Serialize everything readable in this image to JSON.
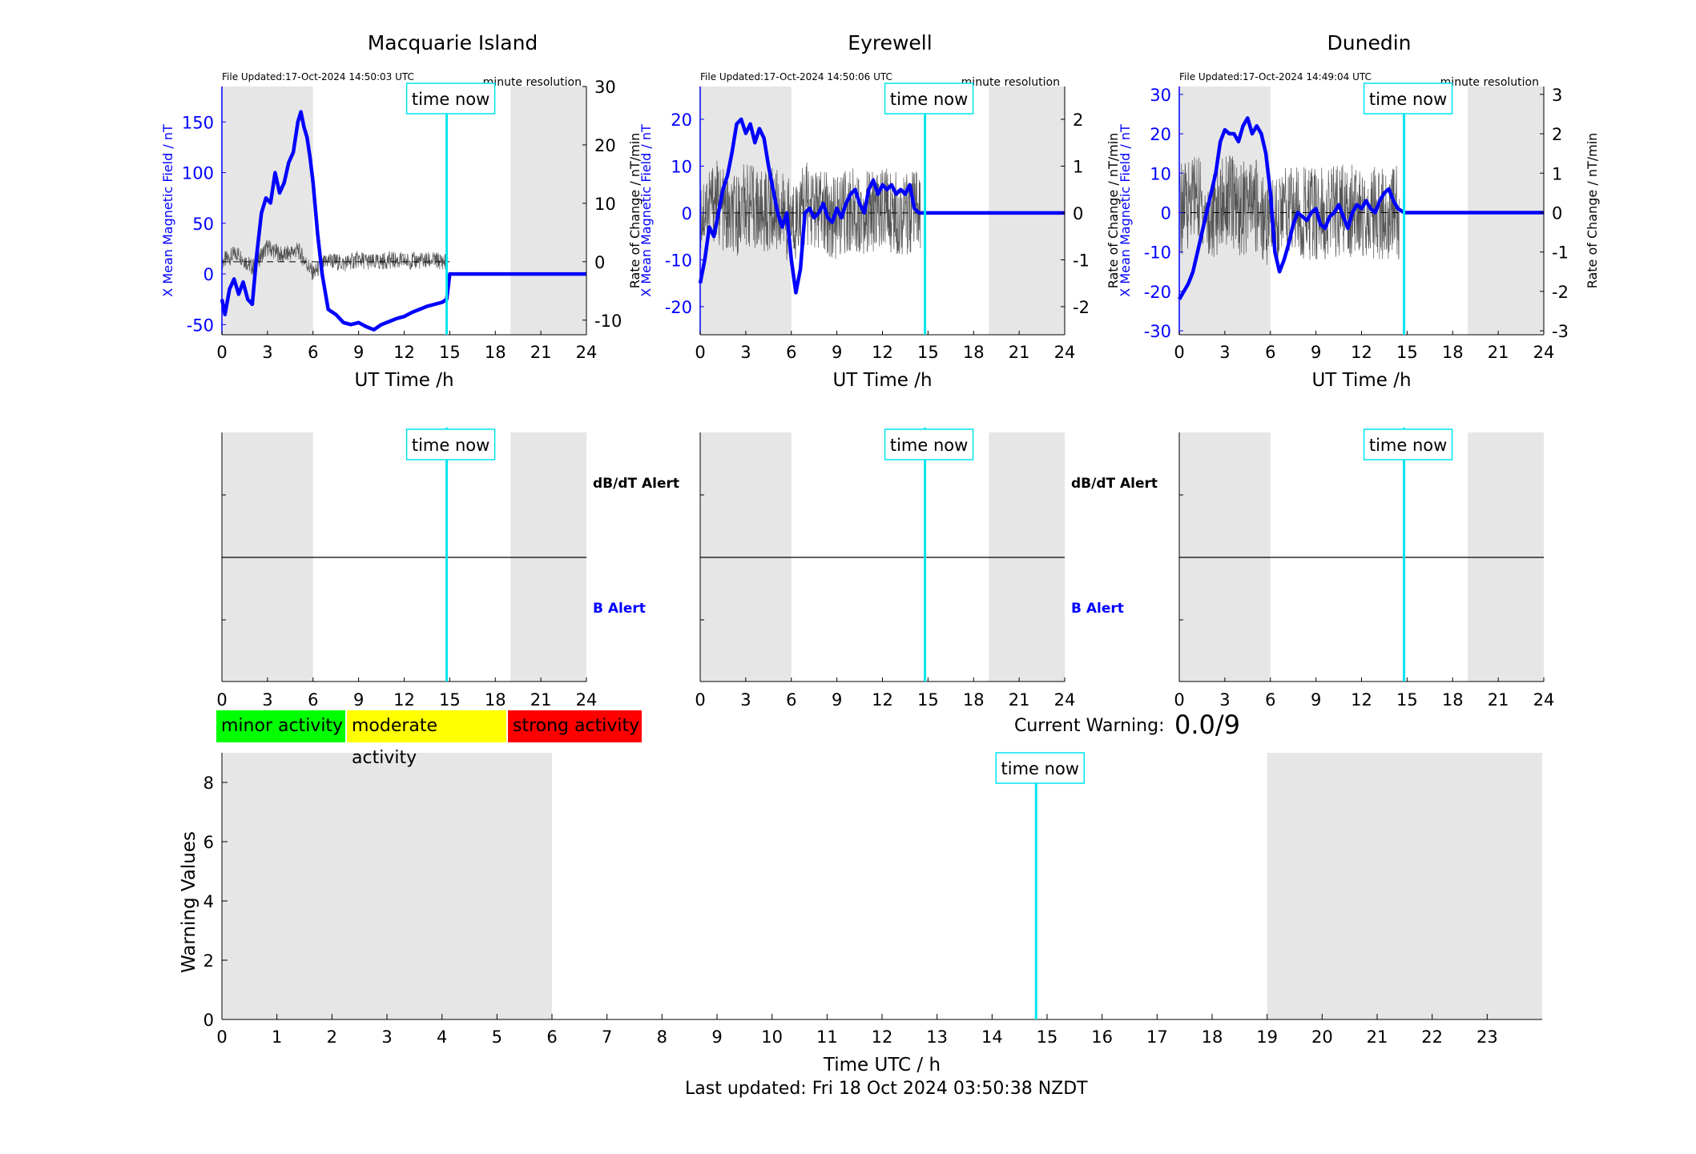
{
  "colors": {
    "field_line": "#0000ff",
    "rate_line": "#555555",
    "time_now": "#00e5ee",
    "night_shade": "#e6e6e6",
    "minor": "#00ff00",
    "moderate": "#ffff00",
    "strong": "#ff0000",
    "b_alert_text": "#0000ff"
  },
  "labels": {
    "time_now": "time now",
    "x_axis_top": "UT Time /h",
    "y_left_top": "X Mean Magnetic Field / nT",
    "y_right_top": "Rate of Change / nT/min",
    "resolution": "minute resolution",
    "dbdt_alert": "dB/dT Alert",
    "b_alert": "B Alert",
    "current_warning_label": "Current Warning:",
    "current_warning_value": "0.0/9",
    "bottom_xlabel": "Time UTC / h",
    "bottom_ylabel": "Warning Values",
    "last_updated": "Last updated: Fri 18 Oct 2024 03:50:38 NZDT"
  },
  "legend": [
    {
      "label": "minor activity",
      "color": "#00ff00"
    },
    {
      "label": "moderate activity",
      "color": "#ffff00"
    },
    {
      "label": "strong activity",
      "color": "#ff0000"
    }
  ],
  "chart_data": [
    {
      "type": "line",
      "title": "Macquarie Island",
      "file_updated": "File Updated:17-Oct-2024 14:50:03 UTC",
      "xlabel": "UT Time /h",
      "ylabel": "X Mean Magnetic Field / nT",
      "y2label": "Rate of Change / nT/min",
      "xlim": [
        0,
        24
      ],
      "xticks": [
        0,
        3,
        6,
        9,
        12,
        15,
        18,
        21,
        24
      ],
      "ylim": [
        -60,
        185
      ],
      "yticks": [
        -50,
        0,
        50,
        100,
        150
      ],
      "y2lim": [
        -12.5,
        30
      ],
      "y2ticks": [
        -10,
        0,
        10,
        20,
        30
      ],
      "night_shading": [
        [
          0,
          6
        ],
        [
          19,
          24
        ]
      ],
      "time_now": 14.8,
      "series": [
        {
          "axis": "left",
          "style": "field",
          "x": [
            0,
            0.2,
            0.5,
            0.8,
            1.1,
            1.4,
            1.7,
            2.0,
            2.3,
            2.6,
            2.9,
            3.2,
            3.5,
            3.8,
            4.1,
            4.4,
            4.7,
            5.0,
            5.2,
            5.4,
            5.6,
            5.8,
            6.0,
            6.3,
            6.6,
            7.0,
            7.5,
            8.0,
            8.5,
            9.0,
            9.5,
            10.0,
            10.5,
            11.0,
            11.5,
            12.0,
            12.5,
            13.0,
            13.5,
            14.0,
            14.5,
            14.8,
            15,
            18,
            21,
            24
          ],
          "y": [
            -25,
            -40,
            -15,
            -5,
            -20,
            -8,
            -25,
            -30,
            20,
            60,
            75,
            70,
            100,
            80,
            90,
            110,
            120,
            150,
            160,
            145,
            135,
            115,
            90,
            40,
            0,
            -35,
            -40,
            -48,
            -50,
            -48,
            -52,
            -55,
            -50,
            -47,
            -44,
            -42,
            -38,
            -35,
            -32,
            -30,
            -28,
            -25,
            0,
            0,
            0,
            0
          ]
        },
        {
          "axis": "right",
          "style": "rate",
          "noise": 1.5,
          "x": [
            0,
            1,
            2,
            3,
            4,
            5,
            6,
            7,
            8,
            9,
            10,
            11,
            12,
            13,
            14,
            14.8
          ],
          "y": [
            0,
            1.5,
            -1,
            2.5,
            1,
            2,
            -2,
            0.3,
            -0.3,
            0.4,
            -0.2,
            0.3,
            0.1,
            0.2,
            0.2,
            0
          ]
        },
        {
          "axis": "right",
          "style": "zero",
          "x": [
            0,
            15
          ],
          "y": [
            0,
            0
          ]
        }
      ]
    },
    {
      "type": "line",
      "title": "Eyrewell",
      "file_updated": "File Updated:17-Oct-2024 14:50:06 UTC",
      "xlabel": "UT Time /h",
      "ylabel": "X Mean Magnetic Field / nT",
      "y2label": "Rate of Change / nT/min",
      "xlim": [
        0,
        24
      ],
      "xticks": [
        0,
        3,
        6,
        9,
        12,
        15,
        18,
        21,
        24
      ],
      "ylim": [
        -26,
        27
      ],
      "yticks": [
        -20,
        -10,
        0,
        10,
        20
      ],
      "y2lim": [
        -2.6,
        2.7
      ],
      "y2ticks": [
        -2,
        -1,
        0,
        1,
        2
      ],
      "night_shading": [
        [
          0,
          6
        ],
        [
          19,
          24
        ]
      ],
      "time_now": 14.8,
      "series": [
        {
          "axis": "left",
          "style": "field",
          "x": [
            0,
            0.3,
            0.6,
            0.9,
            1.2,
            1.5,
            1.8,
            2.1,
            2.4,
            2.7,
            3.0,
            3.3,
            3.6,
            3.9,
            4.2,
            4.5,
            4.8,
            5.1,
            5.4,
            5.7,
            6.0,
            6.3,
            6.6,
            6.9,
            7.2,
            7.5,
            7.8,
            8.1,
            8.4,
            8.7,
            9.0,
            9.3,
            9.6,
            9.9,
            10.2,
            10.5,
            10.8,
            11.1,
            11.4,
            11.7,
            12.0,
            12.3,
            12.6,
            12.9,
            13.2,
            13.5,
            13.8,
            14.1,
            14.4,
            14.8,
            18,
            21,
            24
          ],
          "y": [
            -15,
            -10,
            -3,
            -5,
            0,
            5,
            8,
            13,
            19,
            20,
            17,
            19,
            15,
            18,
            16,
            10,
            5,
            0,
            -3,
            0,
            -10,
            -17,
            -12,
            0,
            1,
            -1,
            0,
            2,
            -1,
            -2,
            1,
            -1,
            2,
            4,
            5,
            2,
            0,
            5,
            7,
            4,
            6,
            5,
            6,
            4,
            5,
            4,
            6,
            1,
            0,
            0,
            0,
            0,
            0
          ]
        },
        {
          "axis": "right",
          "style": "rate",
          "noise": 0.9,
          "x": [
            0,
            1,
            2,
            3,
            4,
            5,
            6,
            7,
            8,
            9,
            10,
            11,
            12,
            13,
            14,
            14.5
          ],
          "y": [
            0,
            0.3,
            -0.2,
            0.2,
            0,
            0.1,
            -0.2,
            0.2,
            0,
            -0.1,
            0.1,
            0,
            0.1,
            0,
            0,
            0
          ]
        },
        {
          "axis": "right",
          "style": "zero",
          "x": [
            0,
            14.5
          ],
          "y": [
            0,
            0
          ]
        }
      ]
    },
    {
      "type": "line",
      "title": "Dunedin",
      "file_updated": "File Updated:17-Oct-2024 14:49:04 UTC",
      "xlabel": "UT Time /h",
      "ylabel": "X Mean Magnetic Field / nT",
      "y2label": "Rate of Change / nT/min",
      "xlim": [
        0,
        24
      ],
      "xticks": [
        0,
        3,
        6,
        9,
        12,
        15,
        18,
        21,
        24
      ],
      "ylim": [
        -31,
        32
      ],
      "yticks": [
        -30,
        -20,
        -10,
        0,
        10,
        20,
        30
      ],
      "y2lim": [
        -3.1,
        3.2
      ],
      "y2ticks": [
        -3,
        -2,
        -1,
        0,
        1,
        2,
        3
      ],
      "night_shading": [
        [
          0,
          6
        ],
        [
          19,
          24
        ]
      ],
      "time_now": 14.8,
      "series": [
        {
          "axis": "left",
          "style": "field",
          "x": [
            0,
            0.3,
            0.6,
            0.9,
            1.2,
            1.5,
            1.8,
            2.1,
            2.4,
            2.7,
            3.0,
            3.3,
            3.6,
            3.9,
            4.2,
            4.5,
            4.8,
            5.1,
            5.4,
            5.7,
            6.0,
            6.3,
            6.6,
            6.9,
            7.2,
            7.5,
            7.8,
            8.1,
            8.4,
            8.7,
            9.0,
            9.3,
            9.6,
            9.9,
            10.2,
            10.5,
            10.8,
            11.1,
            11.4,
            11.7,
            12.0,
            12.3,
            12.6,
            12.9,
            13.2,
            13.5,
            13.8,
            14.1,
            14.4,
            14.8,
            18,
            21,
            24
          ],
          "y": [
            -22,
            -20,
            -18,
            -15,
            -10,
            -5,
            0,
            5,
            10,
            18,
            21,
            20,
            20,
            18,
            22,
            24,
            20,
            22,
            20,
            15,
            5,
            -10,
            -15,
            -12,
            -8,
            -3,
            0,
            -1,
            -2,
            0,
            1,
            -3,
            -4,
            -1,
            0,
            2,
            -1,
            -4,
            0,
            2,
            1,
            3,
            1,
            0,
            3,
            5,
            6,
            3,
            1,
            0,
            0,
            0,
            0
          ]
        },
        {
          "axis": "right",
          "style": "rate",
          "noise": 1.2,
          "x": [
            0,
            1,
            2,
            3,
            4,
            5,
            6,
            7,
            8,
            9,
            10,
            11,
            12,
            13,
            14,
            14.5
          ],
          "y": [
            0,
            0.5,
            -0.2,
            0.4,
            0.1,
            0.2,
            -0.3,
            0.1,
            0,
            -0.1,
            0,
            0.1,
            0,
            0,
            0,
            0
          ]
        },
        {
          "axis": "right",
          "style": "zero",
          "x": [
            0,
            14.5
          ],
          "y": [
            0,
            0
          ]
        }
      ]
    },
    {
      "type": "alert",
      "xlim": [
        0,
        24
      ],
      "xticks": [
        0,
        3,
        6,
        9,
        12,
        15,
        18,
        21,
        24
      ],
      "night_shading": [
        [
          0,
          6
        ],
        [
          19,
          24
        ]
      ],
      "time_now": 14.8,
      "dbdt_alert": [],
      "b_alert": []
    },
    {
      "type": "alert",
      "xlim": [
        0,
        24
      ],
      "xticks": [
        0,
        3,
        6,
        9,
        12,
        15,
        18,
        21,
        24
      ],
      "night_shading": [
        [
          0,
          6
        ],
        [
          19,
          24
        ]
      ],
      "time_now": 14.8,
      "dbdt_alert": [],
      "b_alert": []
    },
    {
      "type": "alert",
      "xlim": [
        0,
        24
      ],
      "xticks": [
        0,
        3,
        6,
        9,
        12,
        15,
        18,
        21,
        24
      ],
      "night_shading": [
        [
          0,
          6
        ],
        [
          19,
          24
        ]
      ],
      "time_now": 14.8,
      "dbdt_alert": [],
      "b_alert": []
    },
    {
      "type": "bar",
      "xlabel": "Time UTC / h",
      "ylabel": "Warning Values",
      "xlim": [
        0,
        24
      ],
      "xticks": [
        0,
        1,
        2,
        3,
        4,
        5,
        6,
        7,
        8,
        9,
        10,
        11,
        12,
        13,
        14,
        15,
        16,
        17,
        18,
        19,
        20,
        21,
        22,
        23
      ],
      "ylim": [
        0,
        9
      ],
      "yticks": [
        0,
        2,
        4,
        6,
        8
      ],
      "night_shading": [
        [
          0,
          6
        ],
        [
          19,
          24
        ]
      ],
      "time_now": 14.8,
      "values": []
    }
  ]
}
